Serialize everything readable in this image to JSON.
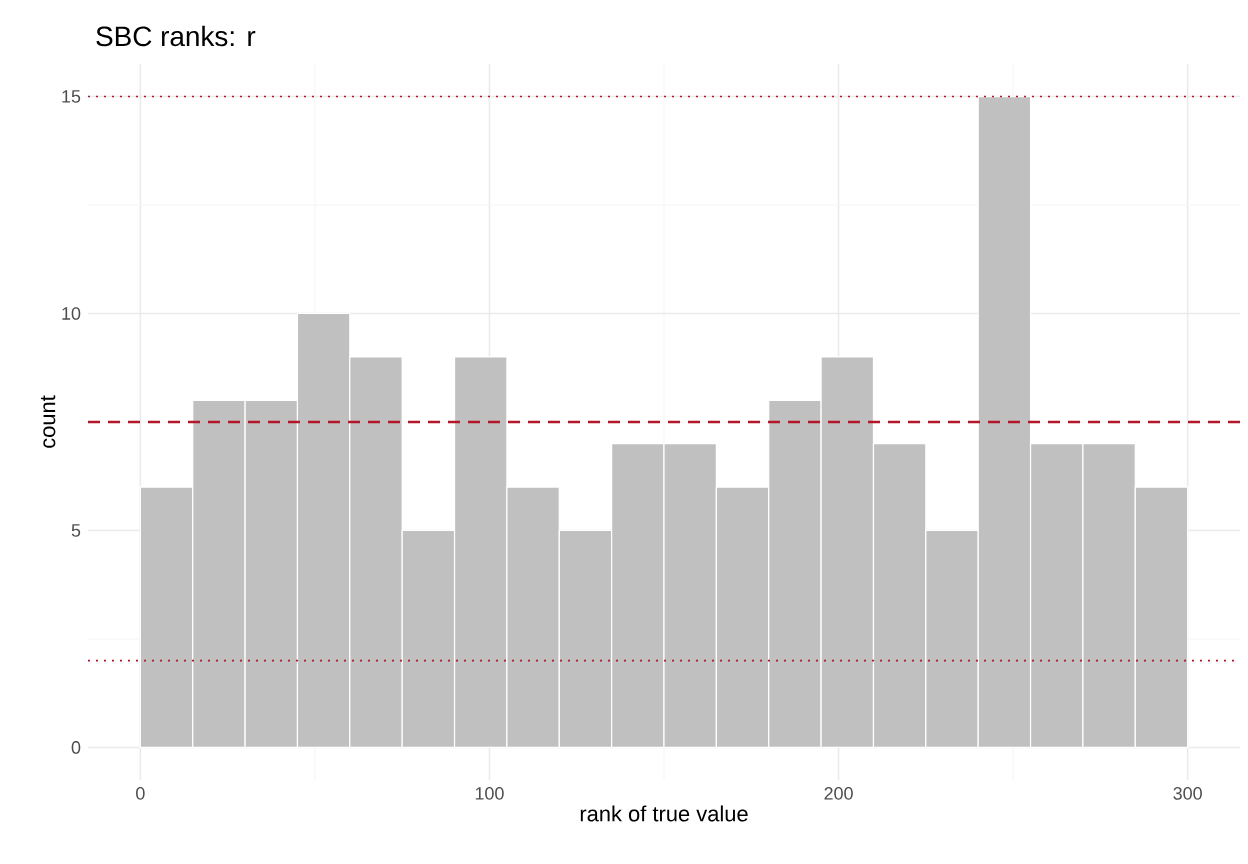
{
  "chart_data": {
    "type": "histogram",
    "title": "SBC ranks: r",
    "xlabel": "rank of true value",
    "ylabel": "count",
    "bins": [
      0,
      15,
      30,
      45,
      60,
      75,
      90,
      105,
      120,
      135,
      150,
      165,
      180,
      195,
      210,
      225,
      240,
      255,
      270,
      285,
      300
    ],
    "values": [
      6,
      8,
      8,
      10,
      9,
      5,
      9,
      6,
      5,
      7,
      7,
      6,
      8,
      9,
      7,
      5,
      15,
      7,
      7,
      6
    ],
    "color": "#c0c0c0",
    "xlim": [
      -15,
      315
    ],
    "ylim": [
      -0.75,
      15.75
    ],
    "xticks": [
      0,
      100,
      200,
      300
    ],
    "yticks": [
      0,
      5,
      10,
      15
    ],
    "grid": true,
    "ref_lines": [
      {
        "axis": "y",
        "value": 7.5,
        "color": "#b2182b",
        "line_style": "dashed"
      },
      {
        "axis": "y",
        "value": 2,
        "color": "#b2182b",
        "line_style": "dotted"
      },
      {
        "axis": "y",
        "value": 15,
        "color": "#b2182b",
        "line_style": "dotted"
      }
    ]
  }
}
